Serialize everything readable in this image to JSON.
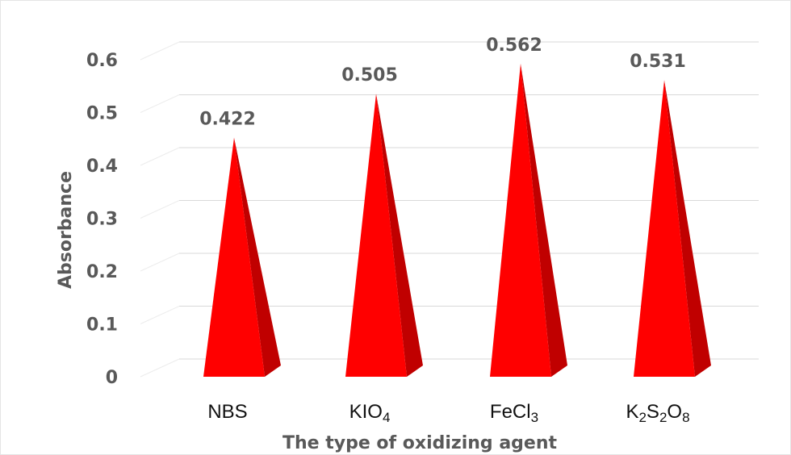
{
  "chart_data": {
    "type": "bar",
    "bar_shape": "3d-pyramid",
    "title": "",
    "xlabel": "The type of oxidizing agent",
    "ylabel": "Absorbance",
    "categories": [
      {
        "label": "NBS",
        "parts": [
          {
            "t": "NBS",
            "sub": false
          }
        ]
      },
      {
        "label": "KIO4",
        "parts": [
          {
            "t": "KIO",
            "sub": false
          },
          {
            "t": "4",
            "sub": true
          }
        ]
      },
      {
        "label": "FeCl3",
        "parts": [
          {
            "t": "FeCl",
            "sub": false
          },
          {
            "t": "3",
            "sub": true
          }
        ]
      },
      {
        "label": "K2S2O8",
        "parts": [
          {
            "t": "K",
            "sub": false
          },
          {
            "t": "2",
            "sub": true
          },
          {
            "t": "S",
            "sub": false
          },
          {
            "t": "2",
            "sub": true
          },
          {
            "t": "O",
            "sub": false
          },
          {
            "t": "8",
            "sub": true
          }
        ]
      }
    ],
    "values": [
      0.422,
      0.505,
      0.562,
      0.531
    ],
    "data_labels": [
      "0.422",
      "0.505",
      "0.562",
      "0.531"
    ],
    "yticks": [
      "0",
      "0.1",
      "0.2",
      "0.3",
      "0.4",
      "0.5",
      "0.6"
    ],
    "ylim": [
      0,
      0.6
    ],
    "grid": true,
    "legend": "none",
    "colors": {
      "front_face": "#ff0000",
      "side_face": "#c00000",
      "grid": "#d9d9d9",
      "text": "#595959"
    }
  }
}
